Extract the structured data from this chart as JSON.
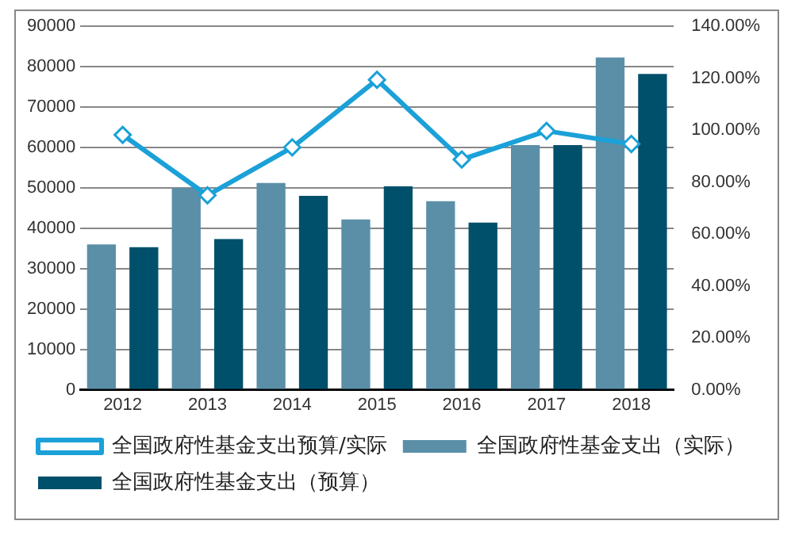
{
  "chart_data": {
    "type": "bar",
    "categories": [
      "2012",
      "2013",
      "2014",
      "2015",
      "2016",
      "2017",
      "2018"
    ],
    "series": [
      {
        "name": "全国政府性基金支出（实际）",
        "color": "#5b8fa8",
        "values": [
          36000,
          50000,
          51200,
          42200,
          46700,
          60600,
          82300
        ]
      },
      {
        "name": "全国政府性基金支出（预算）",
        "color": "#00506b",
        "values": [
          35300,
          37300,
          48000,
          50400,
          41400,
          60600,
          78200
        ]
      },
      {
        "name": "全国政府性基金支出预算/实际",
        "type": "line",
        "axis": "y2",
        "color": "#1ba1d8",
        "marker": "diamond",
        "values": [
          98.2,
          74.9,
          93.4,
          119.4,
          88.7,
          99.7,
          94.7
        ]
      }
    ],
    "ylim": [
      0,
      90000
    ],
    "yticks": [
      0,
      10000,
      20000,
      30000,
      40000,
      50000,
      60000,
      70000,
      80000,
      90000
    ],
    "y2lim": [
      0,
      140
    ],
    "y2ticks": [
      {
        "value": 0,
        "label": "0.00%"
      },
      {
        "value": 20,
        "label": "20.00%"
      },
      {
        "value": 40,
        "label": "40.00%"
      },
      {
        "value": 60,
        "label": "60.00%"
      },
      {
        "value": 80,
        "label": "80.00%"
      },
      {
        "value": 100,
        "label": "100.00%"
      },
      {
        "value": 120,
        "label": "120.00%"
      },
      {
        "value": 140,
        "label": "140.00%"
      }
    ],
    "grid": "y",
    "legend": "bottom"
  }
}
